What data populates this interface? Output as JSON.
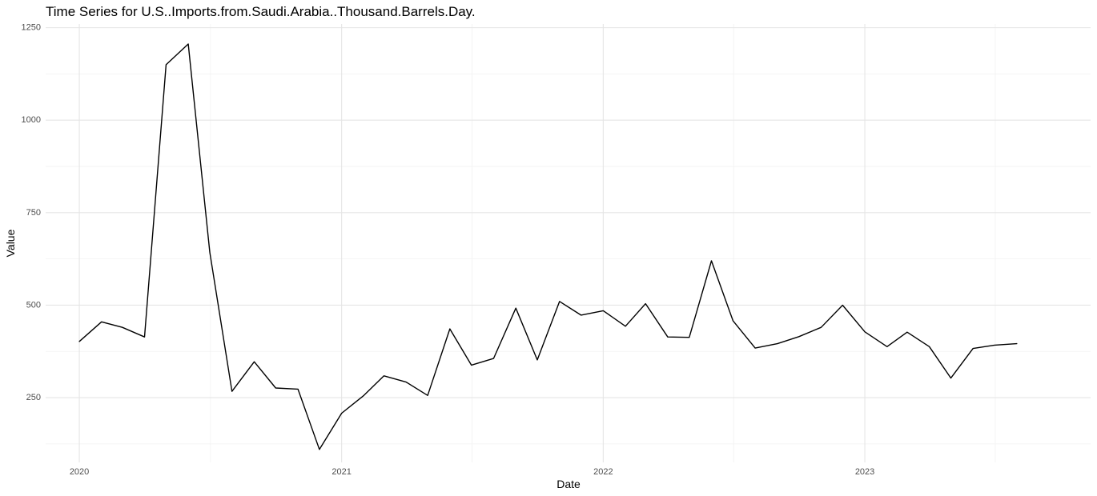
{
  "chart_data": {
    "type": "line",
    "title": "Time Series for U.S..Imports.from.Saudi.Arabia..Thousand.Barrels.Day.",
    "xlabel": "Date",
    "ylabel": "Value",
    "x_ticks": [
      "2020",
      "2021",
      "2022",
      "2023"
    ],
    "y_ticks": [
      250,
      500,
      750,
      1000,
      1250
    ],
    "ylim": [
      75,
      1260
    ],
    "xlim": [
      "2019-11-15",
      "2023-11-12"
    ],
    "grid": true,
    "series": [
      {
        "color": "#000000",
        "x": [
          "2020-01-01",
          "2020-02-01",
          "2020-03-01",
          "2020-04-01",
          "2020-05-01",
          "2020-06-01",
          "2020-07-01",
          "2020-08-01",
          "2020-09-01",
          "2020-10-01",
          "2020-11-01",
          "2020-12-01",
          "2021-01-01",
          "2021-02-01",
          "2021-03-01",
          "2021-04-01",
          "2021-05-01",
          "2021-06-01",
          "2021-07-01",
          "2021-08-01",
          "2021-09-01",
          "2021-10-01",
          "2021-11-01",
          "2021-12-01",
          "2022-01-01",
          "2022-02-01",
          "2022-03-01",
          "2022-04-01",
          "2022-05-01",
          "2022-06-01",
          "2022-07-01",
          "2022-08-01",
          "2022-09-01",
          "2022-10-01",
          "2022-11-01",
          "2022-12-01",
          "2023-01-01",
          "2023-02-01",
          "2023-03-01",
          "2023-04-01",
          "2023-05-01",
          "2023-06-01",
          "2023-07-01",
          "2023-08-01"
        ],
        "values": [
          402,
          455,
          440,
          414,
          1150,
          1206,
          643,
          267,
          347,
          276,
          273,
          110,
          208,
          256,
          309,
          292,
          256,
          436,
          338,
          356,
          492,
          352,
          510,
          473,
          485,
          443,
          504,
          414,
          413,
          620,
          458,
          384,
          396,
          415,
          440,
          500,
          428,
          388,
          427,
          388,
          303,
          383,
          392,
          396
        ]
      }
    ]
  }
}
